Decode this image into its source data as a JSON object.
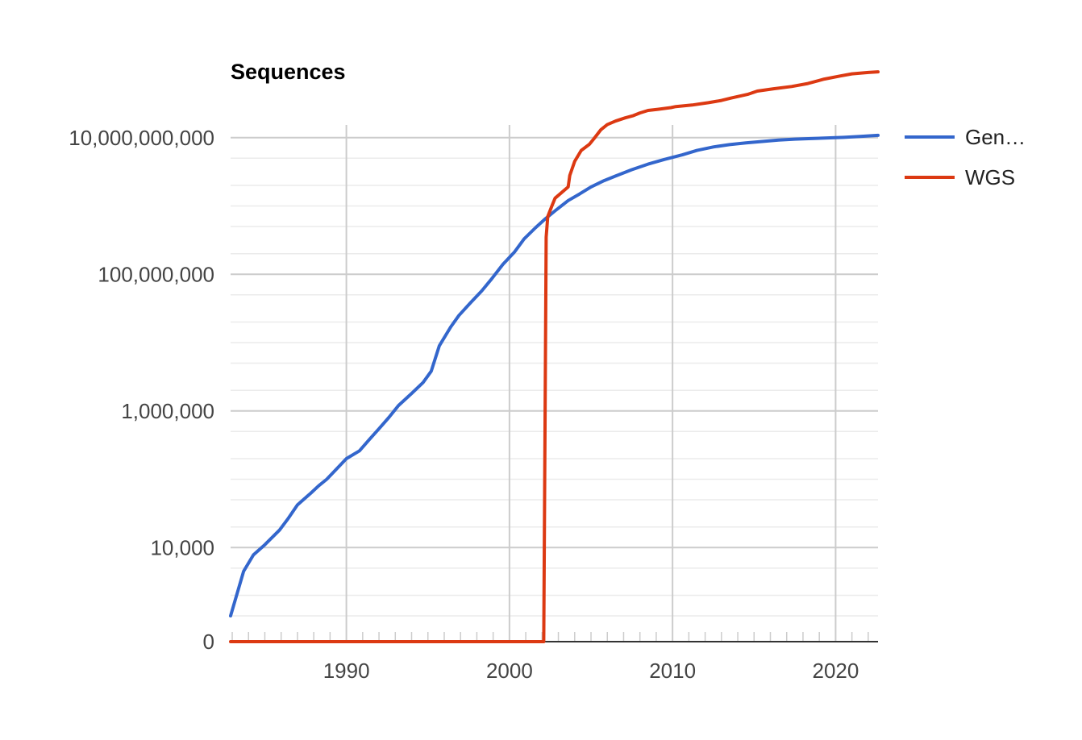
{
  "chart_data": {
    "type": "line",
    "title": "Sequences",
    "xlabel": "",
    "ylabel": "",
    "x_ticks": [
      "1990",
      "2000",
      "2010",
      "2020"
    ],
    "y_ticks": [
      "0",
      "10,000",
      "1,000,000",
      "100,000,000",
      "10,000,000,000"
    ],
    "y_scale": "log",
    "xlim": [
      1982.9,
      2022.6
    ],
    "ylim": [
      0,
      10000000000
    ],
    "grid": true,
    "legend_position": "right",
    "series": [
      {
        "name": "Gen…",
        "color": "#3366cc",
        "x": [
          1982.9,
          1983.7,
          1984.3,
          1985.0,
          1985.9,
          1986.4,
          1987.0,
          1987.8,
          1988.3,
          1988.8,
          1989.5,
          1990.0,
          1990.8,
          1991.4,
          1992.0,
          1992.6,
          1993.2,
          1994.0,
          1994.7,
          1995.2,
          1995.7,
          1996.4,
          1996.9,
          1997.6,
          1998.3,
          1998.9,
          1999.6,
          2000.3,
          2000.9,
          2001.6,
          2002.2,
          2002.8,
          2003.6,
          2004.3,
          2005.0,
          2005.8,
          2006.6,
          2007.5,
          2008.5,
          2009.5,
          2010.6,
          2011.5,
          2012.5,
          2013.5,
          2014.5,
          2015.5,
          2016.5,
          2017.5,
          2018.5,
          2019.5,
          2020.5,
          2021.5,
          2022.6
        ],
        "values": [
          1000,
          4500,
          7800,
          11000,
          18000,
          26000,
          42000,
          62000,
          80000,
          100000,
          150000,
          200000,
          260000,
          380000,
          550000,
          800000,
          1200000,
          1800000,
          2600000,
          3800000,
          9000000,
          17000000,
          25000000,
          38000000,
          57000000,
          85000000,
          140000000,
          210000000,
          330000000,
          480000000,
          650000000,
          850000000,
          1200000000,
          1500000000,
          1900000000,
          2350000000,
          2800000000,
          3400000000,
          4100000000,
          4800000000,
          5600000000,
          6500000000,
          7300000000,
          7900000000,
          8400000000,
          8800000000,
          9200000000,
          9500000000,
          9700000000,
          9900000000,
          10100000000,
          10400000000,
          10800000000
        ]
      },
      {
        "name": "WGS",
        "color": "#dc3912",
        "x": [
          1982.9,
          2002.1,
          2002.25,
          2002.35,
          2002.6,
          2002.8,
          2003.6,
          2003.7,
          2004.0,
          2004.4,
          2004.9,
          2005.2,
          2005.6,
          2006.0,
          2006.5,
          2007.1,
          2007.6,
          2008.0,
          2008.5,
          2009.1,
          2009.9,
          2010.2,
          2011.2,
          2012.2,
          2013.0,
          2013.6,
          2014.6,
          2015.2,
          2016.2,
          2017.3,
          2018.3,
          2019.3,
          2020.3,
          2021.0,
          2022.0,
          2022.6
        ],
        "values": [
          0,
          0,
          350000000,
          700000000,
          1000000000,
          1300000000,
          1900000000,
          2800000000,
          4500000000,
          6500000000,
          8000000000,
          9800000000,
          13000000000,
          15500000000,
          17500000000,
          19500000000,
          21000000000,
          23000000000,
          25000000000,
          26000000000,
          27500000000,
          28500000000,
          30000000000,
          32500000000,
          35000000000,
          38000000000,
          43000000000,
          48000000000,
          52000000000,
          56000000000,
          62000000000,
          72000000000,
          80000000000,
          86000000000,
          90000000000,
          92000000000
        ]
      }
    ]
  }
}
